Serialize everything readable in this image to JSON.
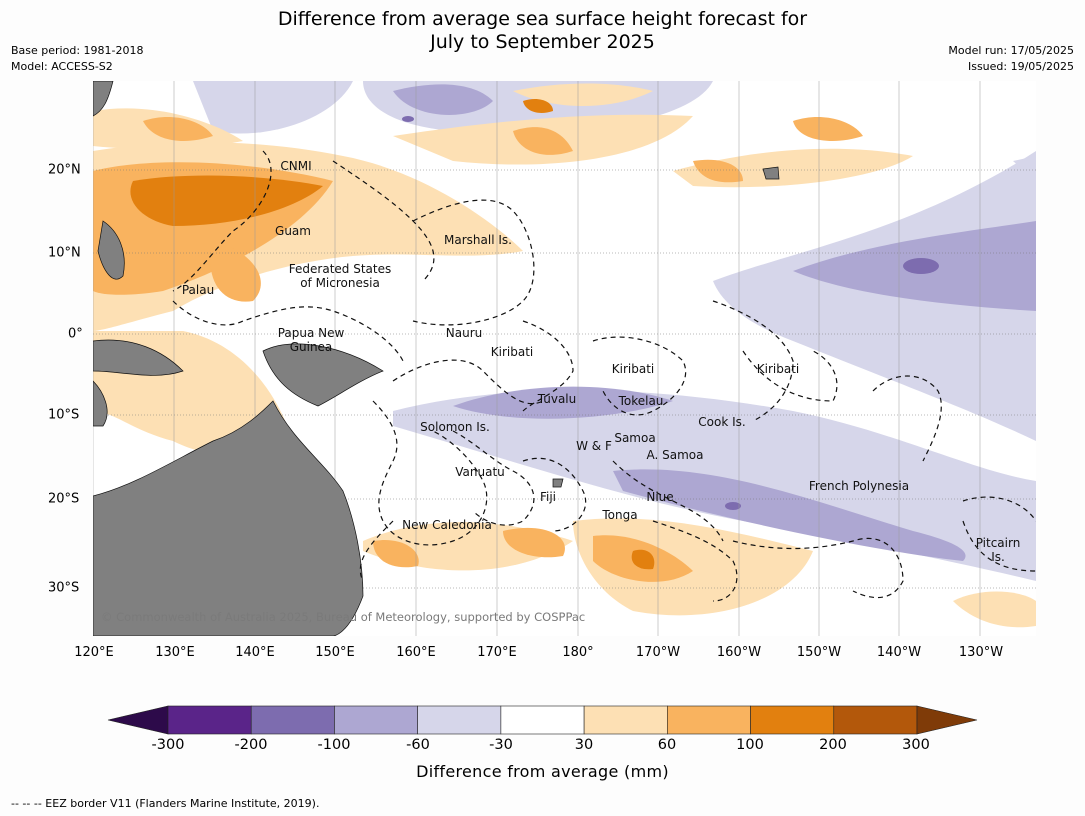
{
  "title": "Difference from average sea surface height forecast for\nJuly to September 2025",
  "meta_left": {
    "base_period": "Base period: 1981-2018",
    "model": "Model: ACCESS-S2"
  },
  "meta_right": {
    "model_run": "Model run: 17/05/2025",
    "issued": "Issued: 19/05/2025"
  },
  "axes": {
    "lon_labels": [
      "120°E",
      "130°E",
      "140°E",
      "150°E",
      "160°E",
      "170°E",
      "180°",
      "170°W",
      "160°W",
      "150°W",
      "140°W",
      "130°W"
    ],
    "lat_labels": [
      "20°N",
      "10°N",
      "0°",
      "10°S",
      "20°S",
      "30°S"
    ]
  },
  "places": [
    {
      "id": "cnmi",
      "name": "CNMI"
    },
    {
      "id": "guam",
      "name": "Guam"
    },
    {
      "id": "marshall",
      "name": "Marshall Is."
    },
    {
      "id": "fsm",
      "name": "Federated States\nof Micronesia"
    },
    {
      "id": "palau",
      "name": "Palau"
    },
    {
      "id": "nauru",
      "name": "Nauru"
    },
    {
      "id": "png",
      "name": "Papua New\nGuinea"
    },
    {
      "id": "kiribati-west",
      "name": "Kiribati"
    },
    {
      "id": "kiribati-central",
      "name": "Kiribati"
    },
    {
      "id": "kiribati-east",
      "name": "Kiribati"
    },
    {
      "id": "tuvalu",
      "name": "Tuvalu"
    },
    {
      "id": "tokelau",
      "name": "Tokelau"
    },
    {
      "id": "cook",
      "name": "Cook Is."
    },
    {
      "id": "solomon",
      "name": "Solomon Is."
    },
    {
      "id": "samoa",
      "name": "Samoa"
    },
    {
      "id": "wf",
      "name": "W & F"
    },
    {
      "id": "asamoa",
      "name": "A. Samoa"
    },
    {
      "id": "vanuatu",
      "name": "Vanuatu"
    },
    {
      "id": "fiji",
      "name": "Fiji"
    },
    {
      "id": "niue",
      "name": "Niue"
    },
    {
      "id": "tonga",
      "name": "Tonga"
    },
    {
      "id": "frenchpoly",
      "name": "French Polynesia"
    },
    {
      "id": "newcal",
      "name": "New Caledonia"
    },
    {
      "id": "pitcairn",
      "name": "Pitcairn\nIs."
    }
  ],
  "copyright": "© Commonwealth of Australia 2025, Bureau of Meteorology, supported by COSPPac",
  "colorbar": {
    "title": "Difference from average (mm)",
    "ticks": [
      "-300",
      "-200",
      "-100",
      "-60",
      "-30",
      "30",
      "60",
      "100",
      "200",
      "300"
    ],
    "colors": {
      "below_min": "#2d0a4a",
      "bins": [
        "#5a2489",
        "#7d6caf",
        "#ada7d2",
        "#d6d6ea",
        "#ffffff",
        "#fde0b4",
        "#f9b35f",
        "#e2800f",
        "#b3580b"
      ],
      "above_max": "#7f3b08"
    }
  },
  "land_color": "#808080",
  "eez_note": "--  --  -- EEZ border V11 (Flanders Marine Institute, 2019)."
}
